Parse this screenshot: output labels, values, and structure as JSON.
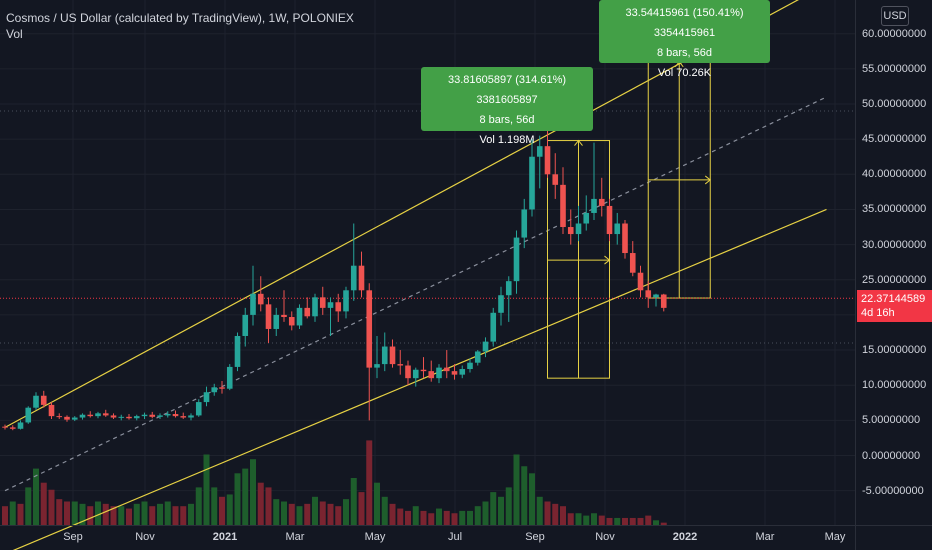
{
  "header": {
    "title": "Cosmos / US Dollar (calculated by TradingView), 1W, POLONIEX",
    "volume_label": "Vol",
    "currency": "USD"
  },
  "price_tag": {
    "value": "22.37144589",
    "countdown": "4d 16h"
  },
  "measure_boxes": [
    {
      "line1": "33.81605897 (314.61%) 3381605897",
      "line2": "8 bars, 56d",
      "line3": "Vol 1.198M"
    },
    {
      "line1": "33.54415961 (150.41%) 3354415961",
      "line2": "8 bars, 56d",
      "line3": "Vol 70.26K"
    }
  ],
  "colors": {
    "up": "#26a69a",
    "down": "#ef5350",
    "channel": "#e6d144",
    "background": "#131722"
  },
  "chart_data": {
    "type": "candlestick",
    "title": "Cosmos / US Dollar (calculated by TradingView), 1W, POLONIEX",
    "y_ticks": [
      "60.00000000",
      "55.00000000",
      "50.00000000",
      "45.00000000",
      "40.00000000",
      "35.00000000",
      "30.00000000",
      "25.00000000",
      "20.00000000",
      "15.00000000",
      "10.00000000",
      "5.00000000",
      "0.00000000",
      "-5.00000000"
    ],
    "ylim": [
      -7.5,
      63.5
    ],
    "x_ticks": [
      {
        "label": "Sep",
        "bold": false
      },
      {
        "label": "Nov",
        "bold": false
      },
      {
        "label": "2021",
        "bold": true
      },
      {
        "label": "Mar",
        "bold": false
      },
      {
        "label": "May",
        "bold": false
      },
      {
        "label": "Jul",
        "bold": false
      },
      {
        "label": "Sep",
        "bold": false
      },
      {
        "label": "Nov",
        "bold": false
      },
      {
        "label": "2022",
        "bold": true
      },
      {
        "label": "Mar",
        "bold": false
      },
      {
        "label": "May",
        "bold": false
      }
    ],
    "last_price": 22.37144589,
    "ohlc": [
      [
        4.1,
        4.4,
        3.7,
        4.0
      ],
      [
        4.0,
        4.3,
        3.6,
        3.8
      ],
      [
        3.8,
        5.0,
        3.7,
        4.7
      ],
      [
        4.7,
        7.0,
        4.5,
        6.8
      ],
      [
        6.8,
        9.0,
        6.5,
        8.5
      ],
      [
        8.5,
        9.2,
        6.8,
        7.2
      ],
      [
        7.2,
        7.6,
        5.2,
        5.6
      ],
      [
        5.6,
        6.0,
        5.2,
        5.5
      ],
      [
        5.5,
        5.7,
        4.8,
        5.1
      ],
      [
        5.1,
        5.6,
        4.9,
        5.4
      ],
      [
        5.4,
        6.0,
        5.1,
        5.8
      ],
      [
        5.8,
        6.3,
        5.4,
        5.6
      ],
      [
        5.6,
        6.2,
        5.3,
        6.0
      ],
      [
        6.0,
        6.5,
        5.5,
        5.7
      ],
      [
        5.7,
        6.0,
        5.2,
        5.4
      ],
      [
        5.4,
        5.8,
        5.0,
        5.5
      ],
      [
        5.5,
        5.9,
        5.1,
        5.3
      ],
      [
        5.3,
        5.8,
        5.0,
        5.6
      ],
      [
        5.6,
        6.1,
        5.2,
        5.8
      ],
      [
        5.8,
        6.2,
        5.3,
        5.5
      ],
      [
        5.5,
        6.0,
        5.2,
        5.7
      ],
      [
        5.7,
        6.3,
        5.4,
        5.9
      ],
      [
        5.9,
        6.4,
        5.4,
        5.6
      ],
      [
        5.6,
        6.1,
        5.2,
        5.4
      ],
      [
        5.4,
        6.0,
        5.0,
        5.7
      ],
      [
        5.7,
        8.0,
        5.5,
        7.6
      ],
      [
        7.6,
        9.8,
        7.0,
        9.0
      ],
      [
        9.0,
        10.2,
        8.5,
        9.7
      ],
      [
        9.7,
        10.6,
        8.8,
        9.5
      ],
      [
        9.5,
        13.0,
        9.3,
        12.6
      ],
      [
        12.6,
        17.5,
        12.0,
        17.0
      ],
      [
        17.0,
        21.0,
        15.5,
        20.0
      ],
      [
        20.0,
        27.0,
        18.5,
        23.0
      ],
      [
        23.0,
        25.5,
        20.5,
        21.5
      ],
      [
        21.5,
        22.5,
        16.0,
        18.0
      ],
      [
        18.0,
        21.0,
        17.0,
        20.0
      ],
      [
        20.0,
        23.5,
        19.0,
        19.7
      ],
      [
        19.7,
        20.5,
        17.8,
        18.5
      ],
      [
        18.5,
        21.5,
        18.0,
        21.0
      ],
      [
        21.0,
        22.5,
        19.5,
        19.8
      ],
      [
        19.8,
        23.0,
        19.0,
        22.5
      ],
      [
        22.5,
        24.0,
        20.0,
        21.0
      ],
      [
        21.0,
        22.5,
        17.0,
        21.8
      ],
      [
        21.8,
        23.0,
        19.0,
        20.5
      ],
      [
        20.5,
        24.0,
        19.5,
        23.5
      ],
      [
        23.5,
        33.0,
        22.0,
        27.0
      ],
      [
        27.0,
        29.0,
        22.5,
        23.5
      ],
      [
        23.5,
        24.5,
        5.0,
        12.5
      ],
      [
        12.5,
        17.0,
        11.0,
        13.0
      ],
      [
        13.0,
        17.5,
        12.0,
        15.5
      ],
      [
        15.5,
        16.5,
        12.5,
        13.0
      ],
      [
        13.0,
        15.0,
        11.5,
        12.8
      ],
      [
        12.8,
        13.5,
        10.0,
        11.0
      ],
      [
        11.0,
        12.5,
        9.8,
        12.2
      ],
      [
        12.2,
        14.0,
        11.0,
        12.0
      ],
      [
        12.0,
        13.5,
        10.5,
        11.0
      ],
      [
        11.0,
        13.0,
        10.3,
        12.5
      ],
      [
        12.5,
        15.0,
        11.0,
        12.0
      ],
      [
        12.0,
        13.0,
        10.8,
        11.5
      ],
      [
        11.5,
        12.8,
        11.0,
        12.3
      ],
      [
        12.3,
        13.8,
        11.8,
        13.2
      ],
      [
        13.2,
        15.0,
        12.8,
        14.8
      ],
      [
        14.8,
        16.8,
        14.0,
        16.2
      ],
      [
        16.2,
        21.0,
        15.5,
        20.3
      ],
      [
        20.3,
        24.0,
        18.5,
        22.8
      ],
      [
        22.8,
        25.5,
        19.0,
        24.8
      ],
      [
        24.8,
        32.0,
        23.0,
        31.0
      ],
      [
        31.0,
        36.5,
        29.5,
        35.0
      ],
      [
        35.0,
        45.0,
        34.0,
        42.5
      ],
      [
        42.5,
        45.5,
        38.0,
        44.0
      ],
      [
        44.0,
        46.5,
        39.5,
        40.0
      ],
      [
        40.0,
        43.0,
        36.5,
        38.5
      ],
      [
        38.5,
        41.0,
        31.5,
        32.5
      ],
      [
        32.5,
        35.0,
        30.0,
        31.5
      ],
      [
        31.5,
        35.5,
        30.5,
        33.0
      ],
      [
        33.0,
        37.0,
        32.0,
        34.5
      ],
      [
        34.5,
        44.5,
        33.5,
        36.5
      ],
      [
        36.5,
        39.5,
        34.0,
        35.5
      ],
      [
        35.5,
        36.5,
        30.5,
        31.5
      ],
      [
        31.5,
        34.5,
        30.0,
        33.0
      ],
      [
        33.0,
        33.5,
        28.0,
        28.8
      ],
      [
        28.8,
        30.5,
        25.5,
        26.0
      ],
      [
        26.0,
        27.0,
        22.5,
        23.5
      ],
      [
        23.5,
        24.8,
        21.0,
        22.5
      ],
      [
        22.5,
        23.0,
        21.2,
        22.9
      ],
      [
        22.9,
        23.0,
        20.5,
        21.0
      ]
    ],
    "volume": [
      [
        8,
        "down"
      ],
      [
        10,
        "up"
      ],
      [
        9,
        "down"
      ],
      [
        16,
        "up"
      ],
      [
        24,
        "up"
      ],
      [
        18,
        "down"
      ],
      [
        15,
        "down"
      ],
      [
        11,
        "down"
      ],
      [
        10,
        "down"
      ],
      [
        10,
        "up"
      ],
      [
        9,
        "up"
      ],
      [
        8,
        "down"
      ],
      [
        10,
        "up"
      ],
      [
        9,
        "down"
      ],
      [
        8,
        "down"
      ],
      [
        8,
        "up"
      ],
      [
        7,
        "down"
      ],
      [
        9,
        "up"
      ],
      [
        10,
        "up"
      ],
      [
        8,
        "down"
      ],
      [
        9,
        "up"
      ],
      [
        10,
        "up"
      ],
      [
        8,
        "down"
      ],
      [
        8,
        "down"
      ],
      [
        9,
        "up"
      ],
      [
        16,
        "up"
      ],
      [
        30,
        "up"
      ],
      [
        16,
        "up"
      ],
      [
        12,
        "down"
      ],
      [
        13,
        "up"
      ],
      [
        22,
        "up"
      ],
      [
        24,
        "up"
      ],
      [
        28,
        "up"
      ],
      [
        18,
        "down"
      ],
      [
        16,
        "down"
      ],
      [
        11,
        "up"
      ],
      [
        10,
        "up"
      ],
      [
        9,
        "down"
      ],
      [
        8,
        "up"
      ],
      [
        9,
        "down"
      ],
      [
        12,
        "up"
      ],
      [
        10,
        "down"
      ],
      [
        9,
        "down"
      ],
      [
        8,
        "down"
      ],
      [
        11,
        "up"
      ],
      [
        20,
        "up"
      ],
      [
        14,
        "down"
      ],
      [
        36,
        "down"
      ],
      [
        18,
        "up"
      ],
      [
        12,
        "up"
      ],
      [
        9,
        "down"
      ],
      [
        7,
        "down"
      ],
      [
        6,
        "down"
      ],
      [
        8,
        "up"
      ],
      [
        6,
        "down"
      ],
      [
        5,
        "down"
      ],
      [
        7,
        "up"
      ],
      [
        6,
        "down"
      ],
      [
        5,
        "down"
      ],
      [
        6,
        "up"
      ],
      [
        6,
        "up"
      ],
      [
        8,
        "up"
      ],
      [
        10,
        "up"
      ],
      [
        14,
        "up"
      ],
      [
        12,
        "up"
      ],
      [
        16,
        "up"
      ],
      [
        30,
        "up"
      ],
      [
        25,
        "up"
      ],
      [
        22,
        "up"
      ],
      [
        12,
        "up"
      ],
      [
        10,
        "down"
      ],
      [
        9,
        "down"
      ],
      [
        8,
        "down"
      ],
      [
        5,
        "down"
      ],
      [
        5,
        "up"
      ],
      [
        4,
        "up"
      ],
      [
        5,
        "up"
      ],
      [
        4,
        "down"
      ],
      [
        3,
        "down"
      ],
      [
        3,
        "up"
      ],
      [
        3,
        "down"
      ],
      [
        3,
        "down"
      ],
      [
        3,
        "down"
      ],
      [
        4,
        "down"
      ],
      [
        2,
        "up"
      ],
      [
        1,
        "down"
      ]
    ],
    "channel": {
      "upper": [
        [
          0,
          4.0
        ],
        [
          106,
          67.0
        ]
      ],
      "middle": [
        [
          0,
          -5.0
        ],
        [
          106,
          51.0
        ]
      ],
      "lower": [
        [
          0,
          -14.0
        ],
        [
          106,
          35.0
        ]
      ]
    },
    "projections": [
      {
        "target_bar": 61,
        "target_value": 10.5,
        "from_bar": 70,
        "to_bar": 78,
        "low": 11.0,
        "high": 44.8,
        "mid": 27.8
      },
      {
        "target_bar": 85,
        "target_value": 21.0,
        "from_bar": 83,
        "to_bar": 91,
        "low": 22.4,
        "high": 56.0,
        "mid": 39.2
      }
    ]
  }
}
